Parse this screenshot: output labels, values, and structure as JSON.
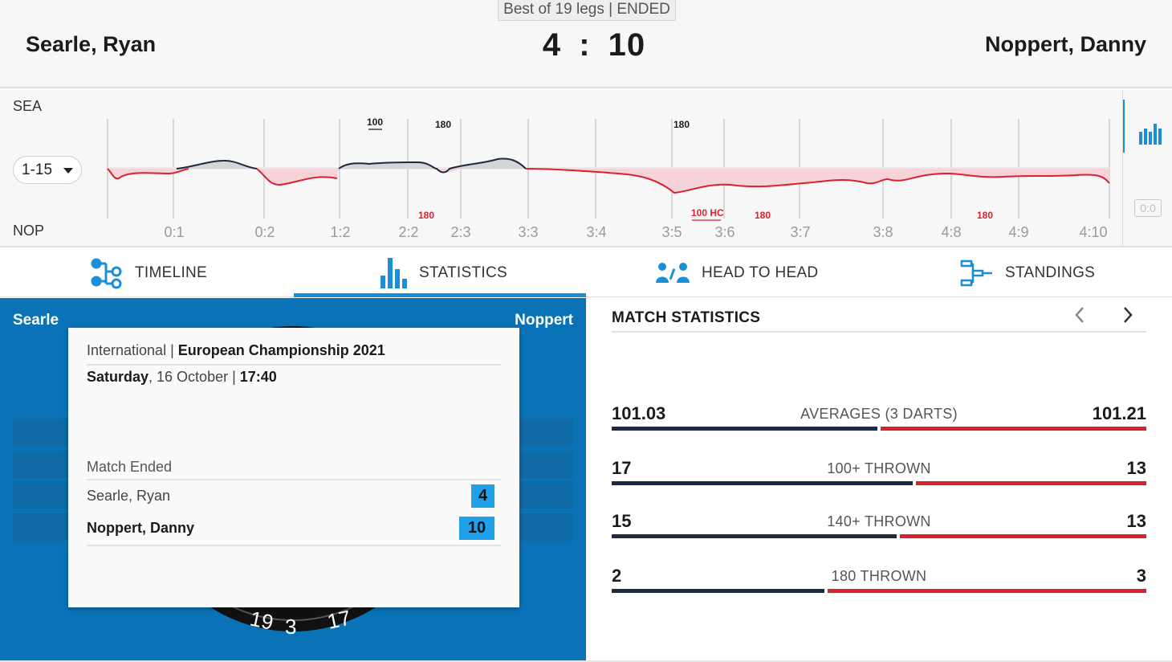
{
  "header": {
    "format": "Best of 19 legs | ENDED",
    "player_left": "Searle, Ryan",
    "player_right": "Noppert, Danny",
    "score_left": "4",
    "score_sep": ":",
    "score_right": "10"
  },
  "chart": {
    "label_top": "SEA",
    "label_bottom": "NOP",
    "range": "1-15",
    "side_badge": "0:0",
    "ticks": [
      "0:1",
      "0:2",
      "1:2",
      "2:2",
      "2:3",
      "3:3",
      "3:4",
      "3:5",
      "3:6",
      "3:7",
      "3:8",
      "4:8",
      "4:9",
      "4:10"
    ],
    "markers_top": [
      "100",
      "180",
      "180"
    ],
    "markers_bottom": [
      "180",
      "100 HC",
      "180",
      "180"
    ]
  },
  "tabs": [
    {
      "label": "TIMELINE",
      "icon": "timeline-icon"
    },
    {
      "label": "STATISTICS",
      "icon": "statistics-icon"
    },
    {
      "label": "HEAD TO HEAD",
      "icon": "head-to-head-icon"
    },
    {
      "label": "STANDINGS",
      "icon": "standings-icon"
    }
  ],
  "left_panel": {
    "name_left": "Searle",
    "name_right": "Noppert",
    "card": {
      "category": "International",
      "separator": " | ",
      "tournament": "European Championship 2021",
      "day": "Saturday",
      "date": ", 16 October | ",
      "time": "17:40",
      "status": "Match Ended",
      "player1": "Searle, Ryan",
      "player1_score": "4",
      "player2": "Noppert, Danny",
      "player2_score": "10"
    }
  },
  "stats": {
    "title": "MATCH STATISTICS",
    "rows": [
      {
        "label": "AVERAGES (3 DARTS)",
        "left": "101.03",
        "right": "101.21",
        "left_share": 0.5
      },
      {
        "label": "100+ THROWN",
        "left": "17",
        "right": "13",
        "left_share": 0.567
      },
      {
        "label": "140+ THROWN",
        "left": "15",
        "right": "13",
        "left_share": 0.536
      },
      {
        "label": "180 THROWN",
        "left": "2",
        "right": "3",
        "left_share": 0.4
      }
    ]
  },
  "colors": {
    "accent": "#1a8fd8",
    "panel_blue": "#0a73b7",
    "left_player": "#1c2a42",
    "right_player": "#d9222d"
  }
}
